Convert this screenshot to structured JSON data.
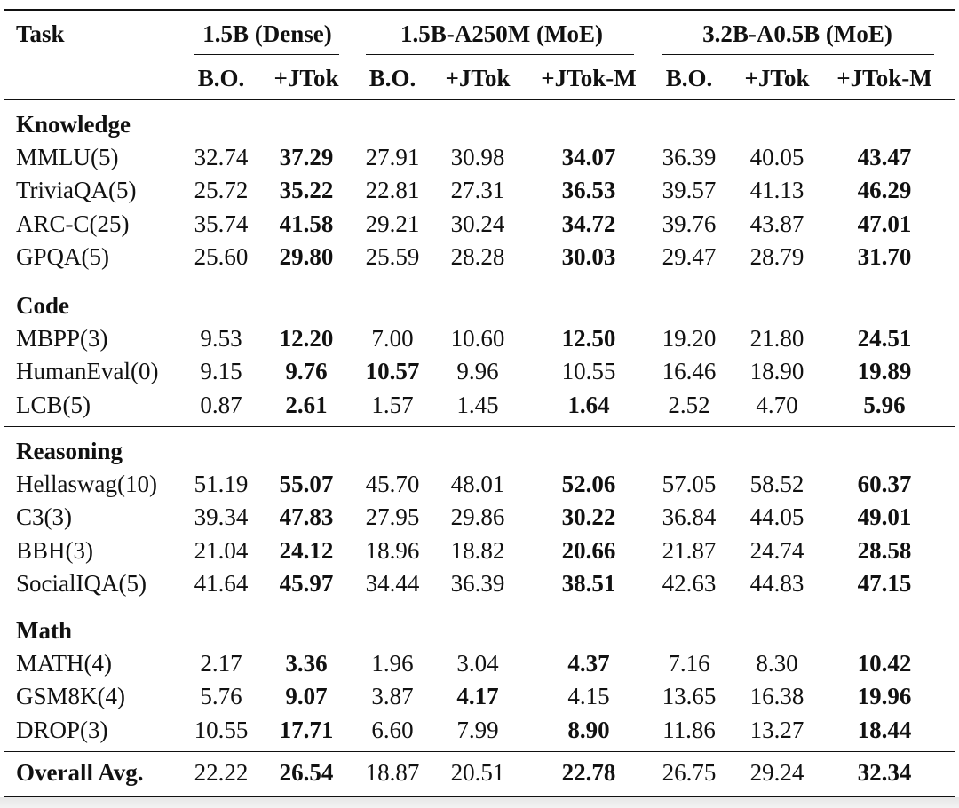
{
  "header": {
    "task": "Task",
    "groups": [
      "1.5B (Dense)",
      "1.5B-A250M (MoE)",
      "3.2B-A0.5B (MoE)"
    ],
    "subcols": [
      "B.O.",
      "+JTok",
      "B.O.",
      "+JTok",
      "+JTok-M",
      "B.O.",
      "+JTok",
      "+JTok-M"
    ]
  },
  "sections": [
    {
      "title": "Knowledge",
      "rows": [
        {
          "task": "MMLU(5)",
          "values": [
            "32.74",
            "37.29",
            "27.91",
            "30.98",
            "34.07",
            "36.39",
            "40.05",
            "43.47"
          ],
          "bold": [
            1,
            4,
            7
          ]
        },
        {
          "task": "TriviaQA(5)",
          "values": [
            "25.72",
            "35.22",
            "22.81",
            "27.31",
            "36.53",
            "39.57",
            "41.13",
            "46.29"
          ],
          "bold": [
            1,
            4,
            7
          ]
        },
        {
          "task": "ARC-C(25)",
          "values": [
            "35.74",
            "41.58",
            "29.21",
            "30.24",
            "34.72",
            "39.76",
            "43.87",
            "47.01"
          ],
          "bold": [
            1,
            4,
            7
          ]
        },
        {
          "task": "GPQA(5)",
          "values": [
            "25.60",
            "29.80",
            "25.59",
            "28.28",
            "30.03",
            "29.47",
            "28.79",
            "31.70"
          ],
          "bold": [
            1,
            4,
            7
          ]
        }
      ]
    },
    {
      "title": "Code",
      "rows": [
        {
          "task": "MBPP(3)",
          "values": [
            "9.53",
            "12.20",
            "7.00",
            "10.60",
            "12.50",
            "19.20",
            "21.80",
            "24.51"
          ],
          "bold": [
            1,
            4,
            7
          ]
        },
        {
          "task": "HumanEval(0)",
          "values": [
            "9.15",
            "9.76",
            "10.57",
            "9.96",
            "10.55",
            "16.46",
            "18.90",
            "19.89"
          ],
          "bold": [
            1,
            2,
            7
          ]
        },
        {
          "task": "LCB(5)",
          "values": [
            "0.87",
            "2.61",
            "1.57",
            "1.45",
            "1.64",
            "2.52",
            "4.70",
            "5.96"
          ],
          "bold": [
            1,
            4,
            7
          ]
        }
      ]
    },
    {
      "title": "Reasoning",
      "rows": [
        {
          "task": "Hellaswag(10)",
          "values": [
            "51.19",
            "55.07",
            "45.70",
            "48.01",
            "52.06",
            "57.05",
            "58.52",
            "60.37"
          ],
          "bold": [
            1,
            4,
            7
          ]
        },
        {
          "task": "C3(3)",
          "values": [
            "39.34",
            "47.83",
            "27.95",
            "29.86",
            "30.22",
            "36.84",
            "44.05",
            "49.01"
          ],
          "bold": [
            1,
            4,
            7
          ]
        },
        {
          "task": "BBH(3)",
          "values": [
            "21.04",
            "24.12",
            "18.96",
            "18.82",
            "20.66",
            "21.87",
            "24.74",
            "28.58"
          ],
          "bold": [
            1,
            4,
            7
          ]
        },
        {
          "task": "SocialIQA(5)",
          "values": [
            "41.64",
            "45.97",
            "34.44",
            "36.39",
            "38.51",
            "42.63",
            "44.83",
            "47.15"
          ],
          "bold": [
            1,
            4,
            7
          ]
        }
      ]
    },
    {
      "title": "Math",
      "rows": [
        {
          "task": "MATH(4)",
          "values": [
            "2.17",
            "3.36",
            "1.96",
            "3.04",
            "4.37",
            "7.16",
            "8.30",
            "10.42"
          ],
          "bold": [
            1,
            4,
            7
          ]
        },
        {
          "task": "GSM8K(4)",
          "values": [
            "5.76",
            "9.07",
            "3.87",
            "4.17",
            "4.15",
            "13.65",
            "16.38",
            "19.96"
          ],
          "bold": [
            1,
            3,
            7
          ]
        },
        {
          "task": "DROP(3)",
          "values": [
            "10.55",
            "17.71",
            "6.60",
            "7.99",
            "8.90",
            "11.86",
            "13.27",
            "18.44"
          ],
          "bold": [
            1,
            4,
            7
          ]
        }
      ]
    }
  ],
  "overall": {
    "task": "Overall Avg.",
    "values": [
      "22.22",
      "26.54",
      "18.87",
      "20.51",
      "22.78",
      "26.75",
      "29.24",
      "32.34"
    ],
    "bold": [
      1,
      4,
      7
    ]
  }
}
